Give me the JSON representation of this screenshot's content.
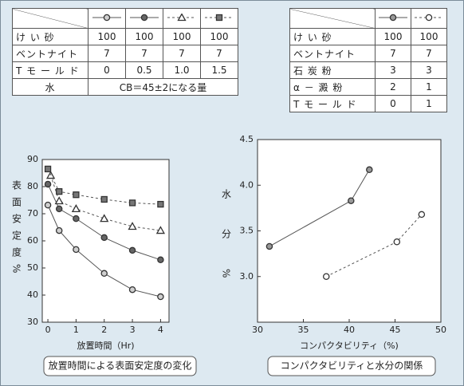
{
  "tables": [
    {
      "rows": [
        [
          "け い 砂",
          "100",
          "100",
          "100",
          "100"
        ],
        [
          "ベントナイト",
          "7",
          "7",
          "7",
          "7"
        ],
        [
          "T モ ー ル ド",
          "0",
          "0.5",
          "1.0",
          "1.5"
        ],
        [
          "水",
          "CB＝45±2になる量"
        ]
      ]
    },
    {
      "rows": [
        [
          "け い 砂",
          "100",
          "100"
        ],
        [
          "ベントナイト",
          "7",
          "7"
        ],
        [
          "石 炭 粉",
          "3",
          "3"
        ],
        [
          "α － 澱 粉",
          "2",
          "1"
        ],
        [
          "T モ ー ル ド",
          "0",
          "1"
        ]
      ]
    }
  ],
  "chart_data": [
    {
      "type": "line",
      "caption": "放置時間による表面安定度の変化",
      "xlabel": "放置時間（Hr)",
      "ylabel": "表面安定度%",
      "xlim": [
        -0.2,
        4.3
      ],
      "ylim": [
        30,
        90
      ],
      "xticks": [
        0,
        1,
        2,
        3,
        4
      ],
      "yticks": [
        30,
        40,
        50,
        60,
        70,
        80,
        90
      ],
      "series": [
        {
          "color": "#555555",
          "marker": "circle",
          "marker_fill": "#cfcfcf",
          "dash": false,
          "x": [
            0,
            0.4,
            1,
            2,
            3,
            4
          ],
          "values": [
            73.2,
            63.8,
            56.8,
            48,
            42,
            39.4
          ]
        },
        {
          "color": "#555555",
          "marker": "circle",
          "marker_fill": "#666666",
          "dash": false,
          "x": [
            0,
            0.4,
            1,
            2,
            3,
            4
          ],
          "values": [
            80.9,
            71.8,
            68.2,
            61.2,
            56.5,
            53
          ]
        },
        {
          "color": "#555555",
          "marker": "triangle",
          "marker_fill": "#ffffff",
          "dash": true,
          "x": [
            0.1,
            0.4,
            1,
            2,
            3,
            4
          ],
          "values": [
            84.1,
            74.7,
            71.8,
            68.2,
            65.3,
            63.8
          ]
        },
        {
          "color": "#555555",
          "marker": "square",
          "marker_fill": "#777777",
          "dash": true,
          "x": [
            0,
            0.4,
            1,
            2,
            3,
            4
          ],
          "values": [
            86.5,
            78.2,
            77,
            75.3,
            74,
            73.5
          ]
        }
      ]
    },
    {
      "type": "line",
      "caption": "コンパクタビリティと水分の関係",
      "xlabel": "コンパクタビリティ（%)",
      "ylabel": "水分%",
      "xlim": [
        30,
        50
      ],
      "ylim": [
        2.5,
        4.5
      ],
      "xticks": [
        30,
        35,
        40,
        45,
        50
      ],
      "yticks": [
        {
          "value": 3,
          "label": "3.0"
        },
        3.5,
        {
          "value": 4,
          "label": "4.0"
        },
        4.5
      ],
      "series": [
        {
          "color": "#555555",
          "marker": "circle",
          "marker_fill": "#999999",
          "dash": false,
          "x": [
            31.3,
            40.2,
            42.2
          ],
          "values": [
            3.33,
            3.83,
            4.17
          ]
        },
        {
          "color": "#555555",
          "marker": "circle",
          "marker_fill": "#ffffff",
          "dash": true,
          "x": [
            37.5,
            45.2,
            47.9
          ],
          "values": [
            3.0,
            3.38,
            3.68
          ]
        }
      ]
    }
  ]
}
